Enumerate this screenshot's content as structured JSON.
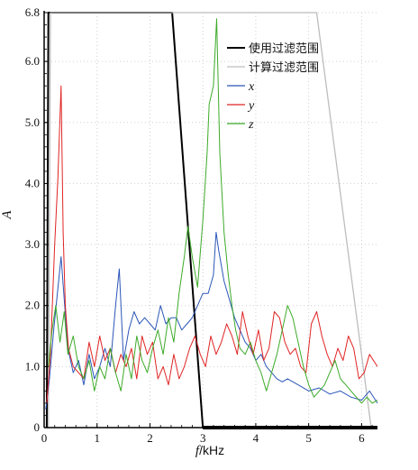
{
  "chart_data": {
    "type": "line",
    "xlabel_var": "f",
    "xlabel_unit": "/kHz",
    "ylabel": "A",
    "xlim": [
      0,
      6.3
    ],
    "ylim": [
      0,
      6.8
    ],
    "x_ticks": [
      0,
      1,
      2,
      3,
      4,
      5,
      6
    ],
    "x_tick_labels": [
      "0",
      "1",
      "2",
      "3",
      "4",
      "5",
      "6"
    ],
    "y_ticks": [
      0,
      1.0,
      2.0,
      3.0,
      4.0,
      5.0,
      6.0,
      6.8
    ],
    "y_tick_labels": [
      "0",
      "1.0",
      "2.0",
      "3.0",
      "4.0",
      "5.0",
      "6.0",
      "6.8"
    ],
    "legend_position": "top-right",
    "colors": {
      "use_filter": "#000000",
      "calc_filter": "#bdbdbd",
      "x": "#2a55b8",
      "y": "#e02424",
      "z": "#3caa28"
    },
    "series": [
      {
        "name": "使用过滤范围",
        "key": "use_filter",
        "x": [
          0.05,
          0.08,
          2.42,
          3.0,
          6.3
        ],
        "values": [
          0,
          6.8,
          6.8,
          0,
          0
        ]
      },
      {
        "name": "计算过滤范围",
        "key": "calc_filter",
        "x": [
          0.08,
          0.12,
          5.15,
          6.18
        ],
        "values": [
          0,
          6.8,
          6.8,
          0
        ]
      },
      {
        "name": "x",
        "key": "x",
        "x": [
          0.03,
          0.1,
          0.18,
          0.25,
          0.32,
          0.38,
          0.45,
          0.55,
          0.65,
          0.75,
          0.85,
          0.95,
          1.05,
          1.15,
          1.25,
          1.35,
          1.42,
          1.5,
          1.6,
          1.7,
          1.8,
          1.9,
          2.0,
          2.1,
          2.2,
          2.3,
          2.4,
          2.5,
          2.6,
          2.7,
          2.8,
          2.9,
          3.0,
          3.1,
          3.2,
          3.25,
          3.3,
          3.4,
          3.5,
          3.6,
          3.7,
          3.8,
          3.9,
          4.0,
          4.1,
          4.2,
          4.3,
          4.4,
          4.5,
          4.6,
          4.8,
          5.0,
          5.2,
          5.4,
          5.6,
          5.8,
          6.0,
          6.15,
          6.3
        ],
        "values": [
          0.3,
          0.8,
          1.6,
          2.2,
          2.8,
          2.1,
          1.3,
          0.9,
          1.1,
          0.7,
          1.2,
          0.8,
          1.0,
          1.3,
          1.0,
          2.0,
          2.6,
          1.1,
          1.6,
          1.9,
          1.7,
          1.8,
          1.7,
          1.6,
          2.0,
          1.7,
          1.8,
          1.8,
          1.6,
          1.7,
          1.8,
          2.0,
          2.2,
          2.2,
          2.5,
          3.2,
          2.9,
          2.4,
          2.1,
          1.8,
          1.6,
          1.4,
          1.3,
          1.1,
          1.2,
          1.0,
          0.9,
          0.8,
          0.75,
          0.8,
          0.7,
          0.6,
          0.65,
          0.55,
          0.6,
          0.5,
          0.45,
          0.6,
          0.4
        ]
      },
      {
        "name": "y",
        "key": "y",
        "x": [
          0.05,
          0.12,
          0.2,
          0.26,
          0.32,
          0.36,
          0.4,
          0.46,
          0.55,
          0.65,
          0.75,
          0.85,
          0.95,
          1.05,
          1.15,
          1.25,
          1.35,
          1.45,
          1.55,
          1.65,
          1.75,
          1.85,
          1.95,
          2.05,
          2.15,
          2.25,
          2.35,
          2.45,
          2.55,
          2.65,
          2.75,
          2.85,
          2.95,
          3.05,
          3.15,
          3.25,
          3.35,
          3.45,
          3.55,
          3.65,
          3.75,
          3.85,
          3.95,
          4.05,
          4.15,
          4.25,
          4.35,
          4.45,
          4.55,
          4.65,
          4.75,
          4.85,
          4.95,
          5.05,
          5.15,
          5.25,
          5.35,
          5.45,
          5.55,
          5.65,
          5.75,
          5.85,
          5.95,
          6.05,
          6.15,
          6.3
        ],
        "values": [
          0.4,
          1.2,
          3.0,
          4.1,
          5.6,
          3.2,
          2.0,
          1.3,
          1.0,
          0.9,
          0.8,
          1.4,
          1.0,
          1.5,
          1.1,
          1.3,
          0.9,
          1.2,
          1.0,
          1.3,
          0.8,
          1.5,
          1.2,
          1.4,
          0.8,
          1.0,
          0.7,
          1.2,
          0.8,
          1.0,
          1.3,
          1.5,
          1.2,
          1.0,
          1.5,
          1.2,
          1.4,
          1.7,
          1.5,
          1.2,
          1.9,
          1.5,
          1.2,
          1.6,
          1.1,
          1.3,
          1.9,
          1.8,
          1.4,
          1.2,
          1.3,
          1.0,
          0.9,
          1.7,
          1.9,
          1.5,
          1.2,
          1.0,
          1.3,
          1.1,
          1.5,
          1.3,
          0.8,
          0.9,
          1.2,
          1.0
        ]
      },
      {
        "name": "z",
        "key": "z",
        "x": [
          0.08,
          0.15,
          0.22,
          0.3,
          0.38,
          0.45,
          0.55,
          0.65,
          0.75,
          0.85,
          0.95,
          1.05,
          1.15,
          1.25,
          1.35,
          1.45,
          1.55,
          1.65,
          1.75,
          1.85,
          1.95,
          2.05,
          2.15,
          2.25,
          2.35,
          2.45,
          2.55,
          2.65,
          2.72,
          2.8,
          2.9,
          3.0,
          3.08,
          3.12,
          3.2,
          3.26,
          3.32,
          3.4,
          3.48,
          3.55,
          3.62,
          3.7,
          3.8,
          3.9,
          4.0,
          4.1,
          4.2,
          4.3,
          4.4,
          4.5,
          4.6,
          4.7,
          4.8,
          4.9,
          5.0,
          5.1,
          5.2,
          5.3,
          5.4,
          5.5,
          5.6,
          5.7,
          5.8,
          5.9,
          6.0,
          6.1,
          6.2,
          6.3
        ],
        "values": [
          1.0,
          1.6,
          2.0,
          1.4,
          1.9,
          1.2,
          1.5,
          1.0,
          0.8,
          1.1,
          0.6,
          1.0,
          0.8,
          1.3,
          0.9,
          0.6,
          1.2,
          0.8,
          1.5,
          1.1,
          0.9,
          1.3,
          1.6,
          1.2,
          1.8,
          1.4,
          2.2,
          2.8,
          3.3,
          2.8,
          2.3,
          3.4,
          4.5,
          5.3,
          5.6,
          6.7,
          4.5,
          3.2,
          2.5,
          2.0,
          1.6,
          1.3,
          1.2,
          1.4,
          1.1,
          0.9,
          0.6,
          0.9,
          1.2,
          1.6,
          2.0,
          1.8,
          1.4,
          1.0,
          0.7,
          0.5,
          0.6,
          0.7,
          0.9,
          1.1,
          0.8,
          0.7,
          0.6,
          0.5,
          0.4,
          0.5,
          0.4,
          0.45
        ]
      }
    ]
  }
}
